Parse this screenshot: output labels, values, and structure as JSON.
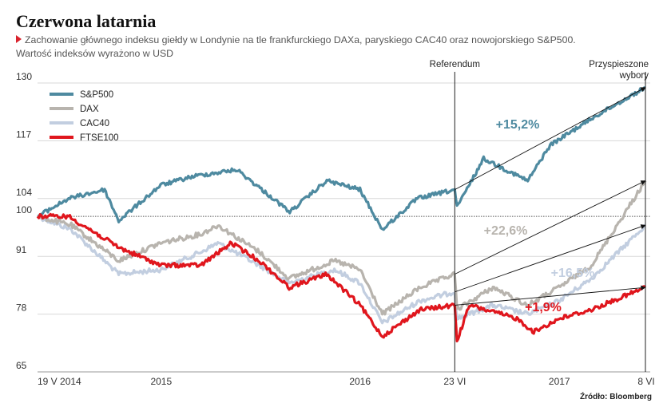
{
  "title": "Czerwona latarnia",
  "subtitle_line1": "Zachowanie głównego indeksu giełdy w Londynie na tle frankfurckiego DAXa, paryskiego CAC40 oraz nowojorskiego S&P500.",
  "subtitle_line2": "Wartość indeksów wyrażono w USD",
  "source": "Źródło: Bloomberg",
  "colors": {
    "sp500": "#4e8aa0",
    "dax": "#b8b4ae",
    "cac40": "#c2cee0",
    "ftse100": "#e0161d",
    "marker": "#d9232d"
  },
  "chart_data": {
    "type": "line",
    "xlabel": "",
    "ylabel": "",
    "ylim": [
      65,
      130
    ],
    "y_ticks": [
      130,
      117,
      104,
      100,
      91,
      78,
      65
    ],
    "reference_line": 100,
    "x_range": [
      "2014-05-19",
      "2017-06-08"
    ],
    "x_tick_labels": [
      {
        "date": "2014-05-19",
        "label": "19 V 2014"
      },
      {
        "date": "2015-01-01",
        "label": "2015"
      },
      {
        "date": "2016-01-01",
        "label": "2016"
      },
      {
        "date": "2016-06-23",
        "label": "23 VI"
      },
      {
        "date": "2017-01-01",
        "label": "2017"
      },
      {
        "date": "2017-06-08",
        "label": "8 VI"
      }
    ],
    "events": [
      {
        "date": "2016-06-23",
        "label": "Referendum"
      },
      {
        "date": "2017-06-08",
        "label": "Przyspieszone wybory"
      }
    ],
    "legend_position": "top-left",
    "series": [
      {
        "name": "S&P500",
        "key": "sp500",
        "points": [
          [
            "2014-05-19",
            100
          ],
          [
            "2014-07-15",
            104
          ],
          [
            "2014-09-19",
            106
          ],
          [
            "2014-10-15",
            99
          ],
          [
            "2014-12-31",
            107
          ],
          [
            "2015-03-01",
            109
          ],
          [
            "2015-05-20",
            110.5
          ],
          [
            "2015-08-25",
            101
          ],
          [
            "2015-11-01",
            108
          ],
          [
            "2016-01-01",
            106
          ],
          [
            "2016-02-11",
            97
          ],
          [
            "2016-04-15",
            104
          ],
          [
            "2016-06-23",
            106
          ],
          [
            "2016-06-27",
            102
          ],
          [
            "2016-08-15",
            113
          ],
          [
            "2016-11-04",
            108
          ],
          [
            "2016-12-15",
            116
          ],
          [
            "2017-03-01",
            122
          ],
          [
            "2017-06-08",
            129
          ]
        ]
      },
      {
        "name": "DAX",
        "key": "dax",
        "points": [
          [
            "2014-05-19",
            100
          ],
          [
            "2014-07-20",
            98
          ],
          [
            "2014-10-15",
            90
          ],
          [
            "2014-12-31",
            94
          ],
          [
            "2015-03-15",
            96
          ],
          [
            "2015-04-15",
            98
          ],
          [
            "2015-06-30",
            92
          ],
          [
            "2015-08-24",
            86
          ],
          [
            "2015-11-15",
            90
          ],
          [
            "2016-01-01",
            88
          ],
          [
            "2016-02-11",
            78
          ],
          [
            "2016-04-20",
            84
          ],
          [
            "2016-06-23",
            87
          ],
          [
            "2016-06-27",
            79
          ],
          [
            "2016-09-01",
            84
          ],
          [
            "2016-11-04",
            80
          ],
          [
            "2016-12-31",
            84
          ],
          [
            "2017-03-01",
            89
          ],
          [
            "2017-06-08",
            108
          ]
        ]
      },
      {
        "name": "CAC40",
        "key": "cac40",
        "points": [
          [
            "2014-05-19",
            100
          ],
          [
            "2014-07-20",
            97
          ],
          [
            "2014-10-15",
            87
          ],
          [
            "2014-12-31",
            88
          ],
          [
            "2015-03-15",
            92
          ],
          [
            "2015-04-15",
            94
          ],
          [
            "2015-06-30",
            89
          ],
          [
            "2015-08-24",
            85
          ],
          [
            "2015-11-15",
            88
          ],
          [
            "2016-01-01",
            85
          ],
          [
            "2016-02-11",
            76
          ],
          [
            "2016-04-20",
            81
          ],
          [
            "2016-06-23",
            83
          ],
          [
            "2016-06-27",
            77
          ],
          [
            "2016-09-01",
            80
          ],
          [
            "2016-11-04",
            78
          ],
          [
            "2016-12-31",
            81
          ],
          [
            "2017-03-01",
            86
          ],
          [
            "2017-06-08",
            98
          ]
        ]
      },
      {
        "name": "FTSE100",
        "key": "ftse100",
        "points": [
          [
            "2014-05-19",
            100
          ],
          [
            "2014-07-15",
            100
          ],
          [
            "2014-10-15",
            93
          ],
          [
            "2014-12-31",
            89
          ],
          [
            "2015-03-15",
            89
          ],
          [
            "2015-05-10",
            94
          ],
          [
            "2015-06-30",
            90
          ],
          [
            "2015-08-24",
            84
          ],
          [
            "2015-11-01",
            87
          ],
          [
            "2016-01-01",
            80
          ],
          [
            "2016-02-11",
            73
          ],
          [
            "2016-04-20",
            79
          ],
          [
            "2016-06-23",
            80
          ],
          [
            "2016-06-27",
            72
          ],
          [
            "2016-07-20",
            80
          ],
          [
            "2016-10-15",
            77
          ],
          [
            "2016-11-15",
            74
          ],
          [
            "2017-01-01",
            77
          ],
          [
            "2017-03-01",
            79
          ],
          [
            "2017-06-08",
            84
          ]
        ]
      }
    ],
    "annotations": [
      {
        "text": "+15,2%",
        "key": "sp500",
        "from": [
          "2016-06-23",
          106
        ],
        "to": [
          "2017-06-08",
          129
        ]
      },
      {
        "text": "+22,6%",
        "key": "dax",
        "from": [
          "2016-06-23",
          87
        ],
        "to": [
          "2017-06-08",
          108
        ]
      },
      {
        "text": "+16,5%",
        "key": "cac40",
        "from": [
          "2016-06-23",
          83
        ],
        "to": [
          "2017-06-08",
          98
        ]
      },
      {
        "text": "+1,9%",
        "key": "ftse100",
        "from": [
          "2016-06-23",
          80
        ],
        "to": [
          "2017-06-08",
          84
        ]
      }
    ]
  }
}
